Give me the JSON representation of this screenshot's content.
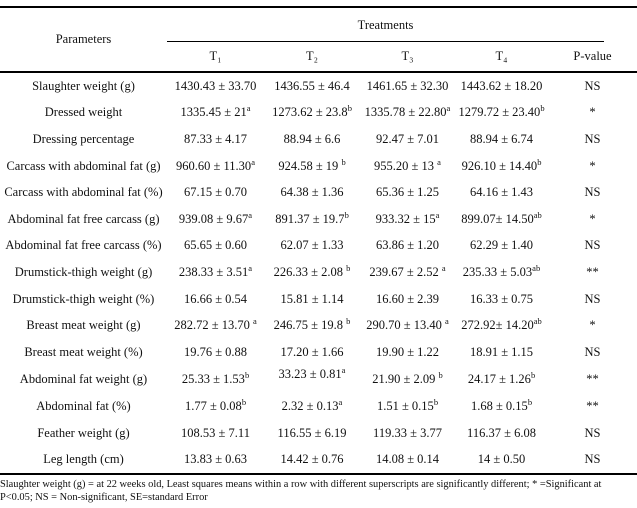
{
  "table": {
    "param_header": "Parameters",
    "col_group_label": "Treatments",
    "col_headers": [
      "T₁",
      "T₂",
      "T₃",
      "T₄",
      "P-value"
    ],
    "raised_cell": {
      "row": 11,
      "col": 1
    },
    "rows": [
      {
        "param": "Slaughter weight (g)",
        "values": [
          "1430.43 ± 33.70",
          "1436.55 ± 46.4",
          "1461.65 ± 32.30",
          "1443.62 ± 18.20"
        ],
        "p": "NS"
      },
      {
        "param": "Dressed weight",
        "values": [
          "1335.45 ± 21^a",
          "1273.62 ± 23.8^b",
          "1335.78 ± 22.80^a",
          "1279.72 ± 23.40^b"
        ],
        "p": "*"
      },
      {
        "param": "Dressing percentage",
        "values": [
          "87.33 ± 4.17",
          "88.94 ± 6.6",
          "92.47 ± 7.01",
          "88.94 ± 6.74"
        ],
        "p": "NS"
      },
      {
        "param": "Carcass with abdominal fat (g)",
        "values": [
          "960.60 ± 11.30^a",
          "924.58 ± 19 ^b",
          "955.20 ± 13 ^a",
          "926.10 ± 14.40^b"
        ],
        "p": "*"
      },
      {
        "param": "Carcass with abdominal fat (%)",
        "values": [
          "67.15 ± 0.70",
          "64.38 ± 1.36",
          "65.36 ± 1.25",
          "64.16 ± 1.43"
        ],
        "p": "NS"
      },
      {
        "param": "Abdominal fat free carcass (g)",
        "values": [
          "939.08 ± 9.67^a",
          "891.37 ± 19.7^b",
          "933.32 ± 15^a",
          "899.07± 14.50^ab"
        ],
        "p": "*"
      },
      {
        "param": "Abdominal fat free carcass (%)",
        "values": [
          "65.65 ± 0.60",
          "62.07 ± 1.33",
          "63.86 ± 1.20",
          "62.29 ± 1.40"
        ],
        "p": "NS"
      },
      {
        "param": "Drumstick-thigh weight (g)",
        "values": [
          "238.33 ± 3.51^a",
          "226.33 ± 2.08 ^b",
          "239.67 ± 2.52 ^a",
          "235.33 ± 5.03^ab"
        ],
        "p": "**"
      },
      {
        "param": "Drumstick-thigh weight (%)",
        "values": [
          "16.66 ± 0.54",
          "15.81 ± 1.14",
          "16.60 ± 2.39",
          "16.33 ± 0.75"
        ],
        "p": "NS"
      },
      {
        "param": "Breast meat weight (g)",
        "values": [
          "282.72 ± 13.70 ^a",
          "246.75 ± 19.8 ^b",
          "290.70 ± 13.40 ^a",
          "272.92± 14.20^ab"
        ],
        "p": "*"
      },
      {
        "param": "Breast meat weight (%)",
        "values": [
          "19.76 ± 0.88",
          "17.20 ± 1.66",
          "19.90 ± 1.22",
          "18.91 ± 1.15"
        ],
        "p": "NS"
      },
      {
        "param": "Abdominal fat weight (g)",
        "values": [
          "25.33 ± 1.53^b",
          "33.23 ± 0.81^a",
          "21.90 ± 2.09 ^b",
          "24.17 ± 1.26^b"
        ],
        "p": "**"
      },
      {
        "param": "Abdominal fat (%)",
        "values": [
          "1.77 ± 0.08^b",
          "2.32 ± 0.13^a",
          "1.51 ± 0.15^b",
          "1.68 ± 0.15^b"
        ],
        "p": "**"
      },
      {
        "param": "Feather weight (g)",
        "values": [
          "108.53 ± 7.11",
          "116.55 ± 6.19",
          "119.33 ± 3.77",
          "116.37 ± 6.08"
        ],
        "p": "NS"
      },
      {
        "param": "Leg length (cm)",
        "values": [
          "13.83 ± 0.63",
          "14.42 ± 0.76",
          "14.08 ± 0.14",
          "14 ± 0.50"
        ],
        "p": "NS"
      }
    ]
  },
  "footnote": {
    "lines": [
      "Slaughter weight (g) = at 22 weeks old, Least squares means within a row with different superscripts are significantly different; * =Significant at",
      "P<0.05; NS = Non-significant, SE=standard Error"
    ]
  }
}
